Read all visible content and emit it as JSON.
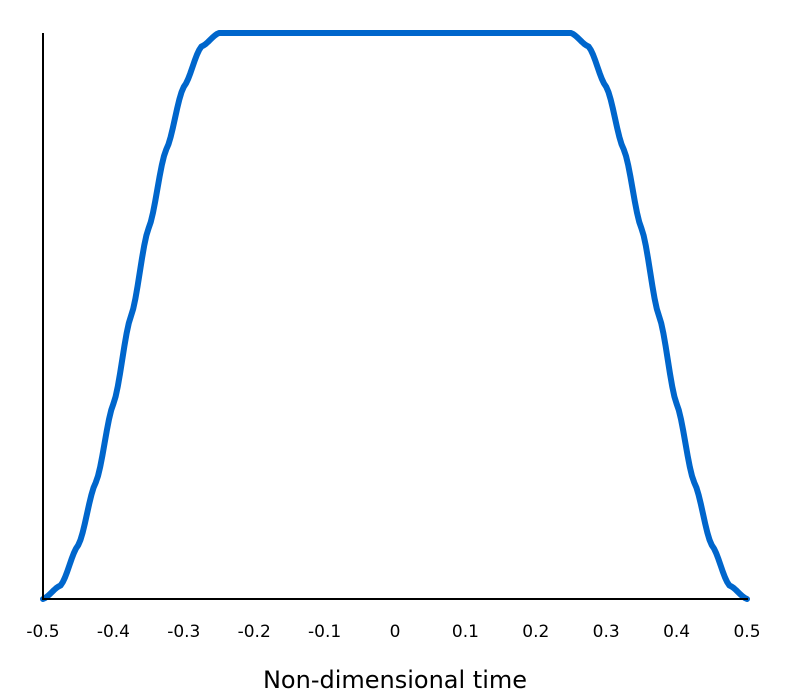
{
  "chart_data": {
    "type": "line",
    "title": "",
    "xlabel": "Non-dimensional time",
    "ylabel": "",
    "xlim": [
      -0.5,
      0.5
    ],
    "ylim": [
      0,
      1
    ],
    "x_ticks": [
      -0.5,
      -0.4,
      -0.3,
      -0.2,
      -0.1,
      0,
      0.1,
      0.2,
      0.3,
      0.4,
      0.5
    ],
    "x_tick_labels": [
      "-0.5",
      "-0.4",
      "-0.3",
      "-0.2",
      "-0.1",
      "0",
      "0.1",
      "0.2",
      "0.3",
      "0.4",
      "0.5"
    ],
    "y_ticks": [],
    "grid": false,
    "legend": "none",
    "series": [
      {
        "color": "#0066cc",
        "x": [
          -0.5,
          -0.475,
          -0.45,
          -0.425,
          -0.4,
          -0.375,
          -0.35,
          -0.325,
          -0.3,
          -0.275,
          -0.25,
          0,
          0.25,
          0.275,
          0.3,
          0.325,
          0.35,
          0.375,
          0.4,
          0.425,
          0.45,
          0.475,
          0.5
        ],
        "y": [
          0,
          0.024,
          0.095,
          0.206,
          0.345,
          0.5,
          0.655,
          0.794,
          0.905,
          0.976,
          1,
          1,
          1,
          0.976,
          0.905,
          0.794,
          0.655,
          0.5,
          0.345,
          0.206,
          0.095,
          0.024,
          0
        ]
      }
    ]
  }
}
